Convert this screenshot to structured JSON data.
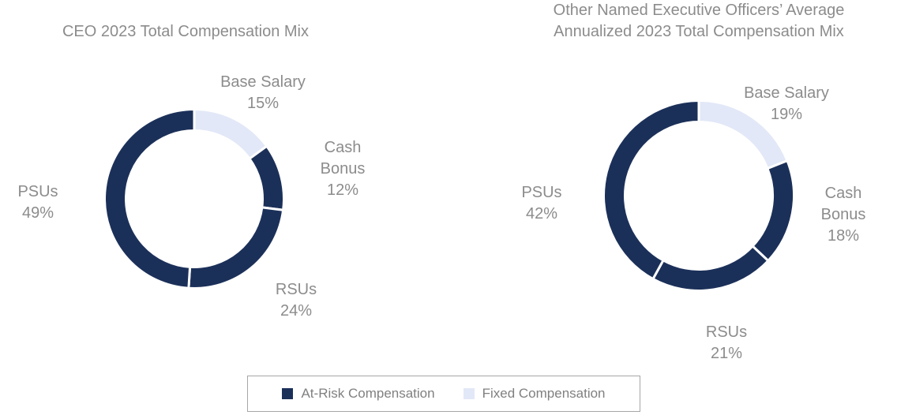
{
  "colors": {
    "at_risk": "#1b3059",
    "fixed": "#e2e8f7"
  },
  "chart_data": [
    {
      "type": "pie",
      "donut": true,
      "title": "CEO 2023 Total Compensation Mix",
      "slices": [
        {
          "label_lines": [
            "Base Salary"
          ],
          "value": 15,
          "value_label": "15%",
          "category": "fixed"
        },
        {
          "label_lines": [
            "Cash",
            "Bonus"
          ],
          "value": 12,
          "value_label": "12%",
          "category": "at_risk"
        },
        {
          "label_lines": [
            "RSUs"
          ],
          "value": 24,
          "value_label": "24%",
          "category": "at_risk"
        },
        {
          "label_lines": [
            "PSUs"
          ],
          "value": 49,
          "value_label": "49%",
          "category": "at_risk"
        }
      ]
    },
    {
      "type": "pie",
      "donut": true,
      "title_lines": [
        "Other Named Executive Officers’ Average",
        "Annualized 2023 Total Compensation Mix"
      ],
      "slices": [
        {
          "label_lines": [
            "Base Salary"
          ],
          "value": 19,
          "value_label": "19%",
          "category": "fixed"
        },
        {
          "label_lines": [
            "Cash",
            "Bonus"
          ],
          "value": 18,
          "value_label": "18%",
          "category": "at_risk"
        },
        {
          "label_lines": [
            "RSUs"
          ],
          "value": 21,
          "value_label": "21%",
          "category": "at_risk"
        },
        {
          "label_lines": [
            "PSUs"
          ],
          "value": 42,
          "value_label": "42%",
          "category": "at_risk"
        }
      ]
    }
  ],
  "legend": {
    "at_risk_label": "At-Risk Compensation",
    "fixed_label": "Fixed Compensation"
  }
}
